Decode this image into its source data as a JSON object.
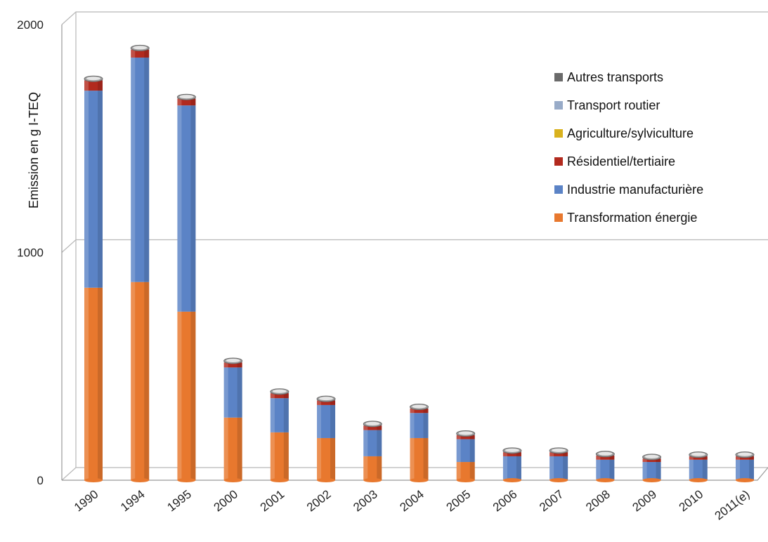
{
  "chart_data": {
    "type": "bar",
    "stacked": true,
    "title": "",
    "ylabel": "Emission en g I-TEQ",
    "xlabel": "",
    "ylim": [
      0,
      2000
    ],
    "yticks": [
      0,
      1000,
      2000
    ],
    "grid": true,
    "legend_position": "top-right",
    "categories": [
      "1990",
      "1994",
      "1995",
      "2000",
      "2001",
      "2002",
      "2003",
      "2004",
      "2005",
      "2006",
      "2007",
      "2008",
      "2009",
      "2010",
      "2011(e)"
    ],
    "series": [
      {
        "name": "Transformation énergie",
        "color": "#E8782E",
        "values": [
          845,
          870,
          740,
          275,
          210,
          185,
          105,
          185,
          80,
          5,
          5,
          5,
          5,
          5,
          5
        ]
      },
      {
        "name": "Industrie manufacturière",
        "color": "#5B83C6",
        "values": [
          865,
          985,
          905,
          220,
          150,
          145,
          115,
          110,
          100,
          100,
          100,
          85,
          75,
          85,
          85
        ]
      },
      {
        "name": "Résidentiel/tertiaire",
        "color": "#B22A1E",
        "values": [
          45,
          35,
          30,
          22,
          22,
          20,
          20,
          20,
          18,
          18,
          18,
          18,
          15,
          15,
          15
        ]
      },
      {
        "name": "Agriculture/sylviculture",
        "color": "#D9B21E",
        "values": [
          0,
          0,
          0,
          0,
          0,
          0,
          0,
          0,
          0,
          0,
          0,
          0,
          0,
          0,
          0
        ]
      },
      {
        "name": "Transport routier",
        "color": "#98ABC8",
        "values": [
          5,
          5,
          5,
          5,
          5,
          5,
          5,
          5,
          5,
          5,
          5,
          5,
          5,
          5,
          5
        ]
      },
      {
        "name": "Autres transports",
        "color": "#6A6A6A",
        "values": [
          2,
          2,
          2,
          2,
          2,
          2,
          2,
          2,
          2,
          2,
          2,
          2,
          2,
          2,
          2
        ]
      }
    ],
    "legend_order": [
      "Autres transports",
      "Transport routier",
      "Agriculture/sylviculture",
      "Résidentiel/tertiaire",
      "Industrie manufacturière",
      "Transformation énergie"
    ]
  }
}
